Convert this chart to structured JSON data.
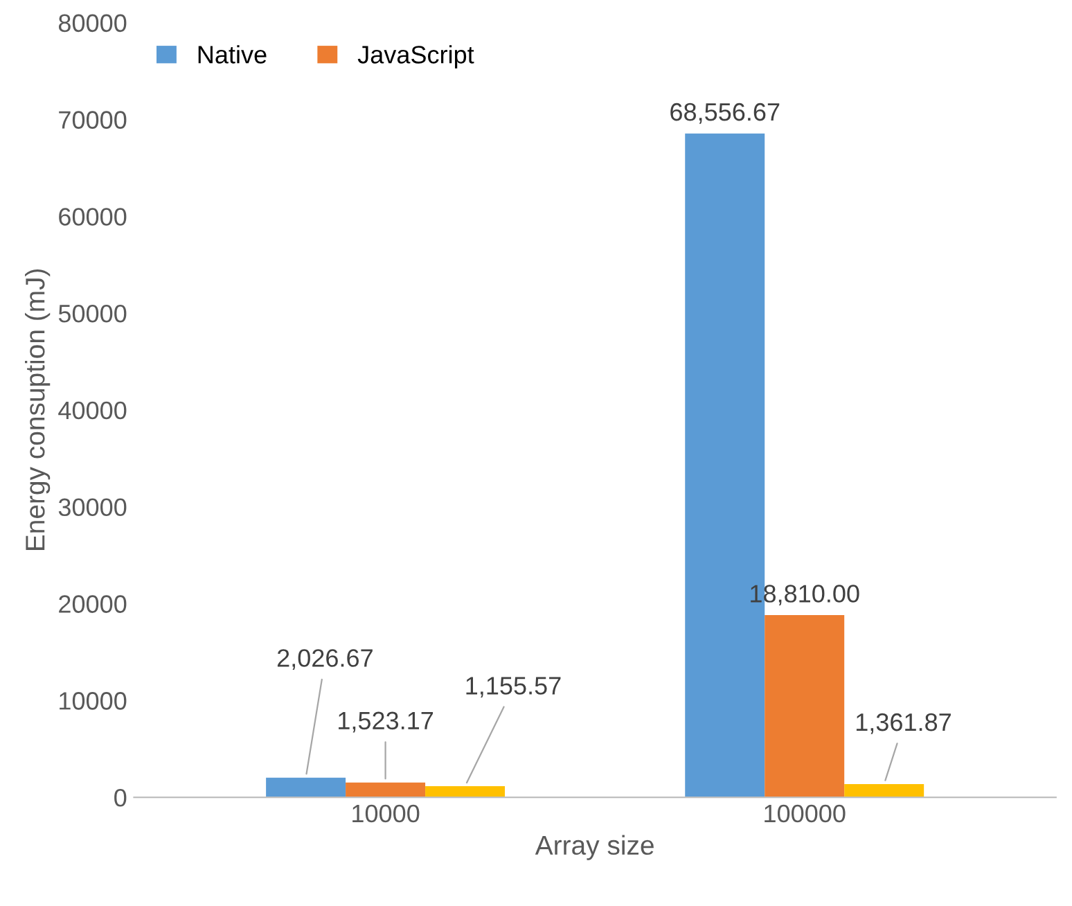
{
  "chart_data": {
    "type": "bar",
    "xlabel": "Array size",
    "ylabel": "Energy consuption (mJ)",
    "categories": [
      "10000",
      "100000"
    ],
    "series": [
      {
        "name": "Native",
        "color": "#5b9bd5",
        "values": [
          2026.67,
          68556.67
        ],
        "value_labels": [
          "2,026.67",
          "68,556.67"
        ]
      },
      {
        "name": "JavaScript",
        "color": "#ed7d31",
        "values": [
          1523.17,
          18810.0
        ],
        "value_labels": [
          "1,523.17",
          "18,810.00"
        ]
      },
      {
        "color": "#ffc000",
        "values": [
          1155.57,
          1361.87
        ],
        "value_labels": [
          "1,155.57",
          "1,361.87"
        ]
      }
    ],
    "ylim": [
      0,
      80000
    ],
    "yticks": [
      0,
      10000,
      20000,
      30000,
      40000,
      50000,
      60000,
      70000,
      80000
    ],
    "grid": false,
    "legend": "top left"
  }
}
